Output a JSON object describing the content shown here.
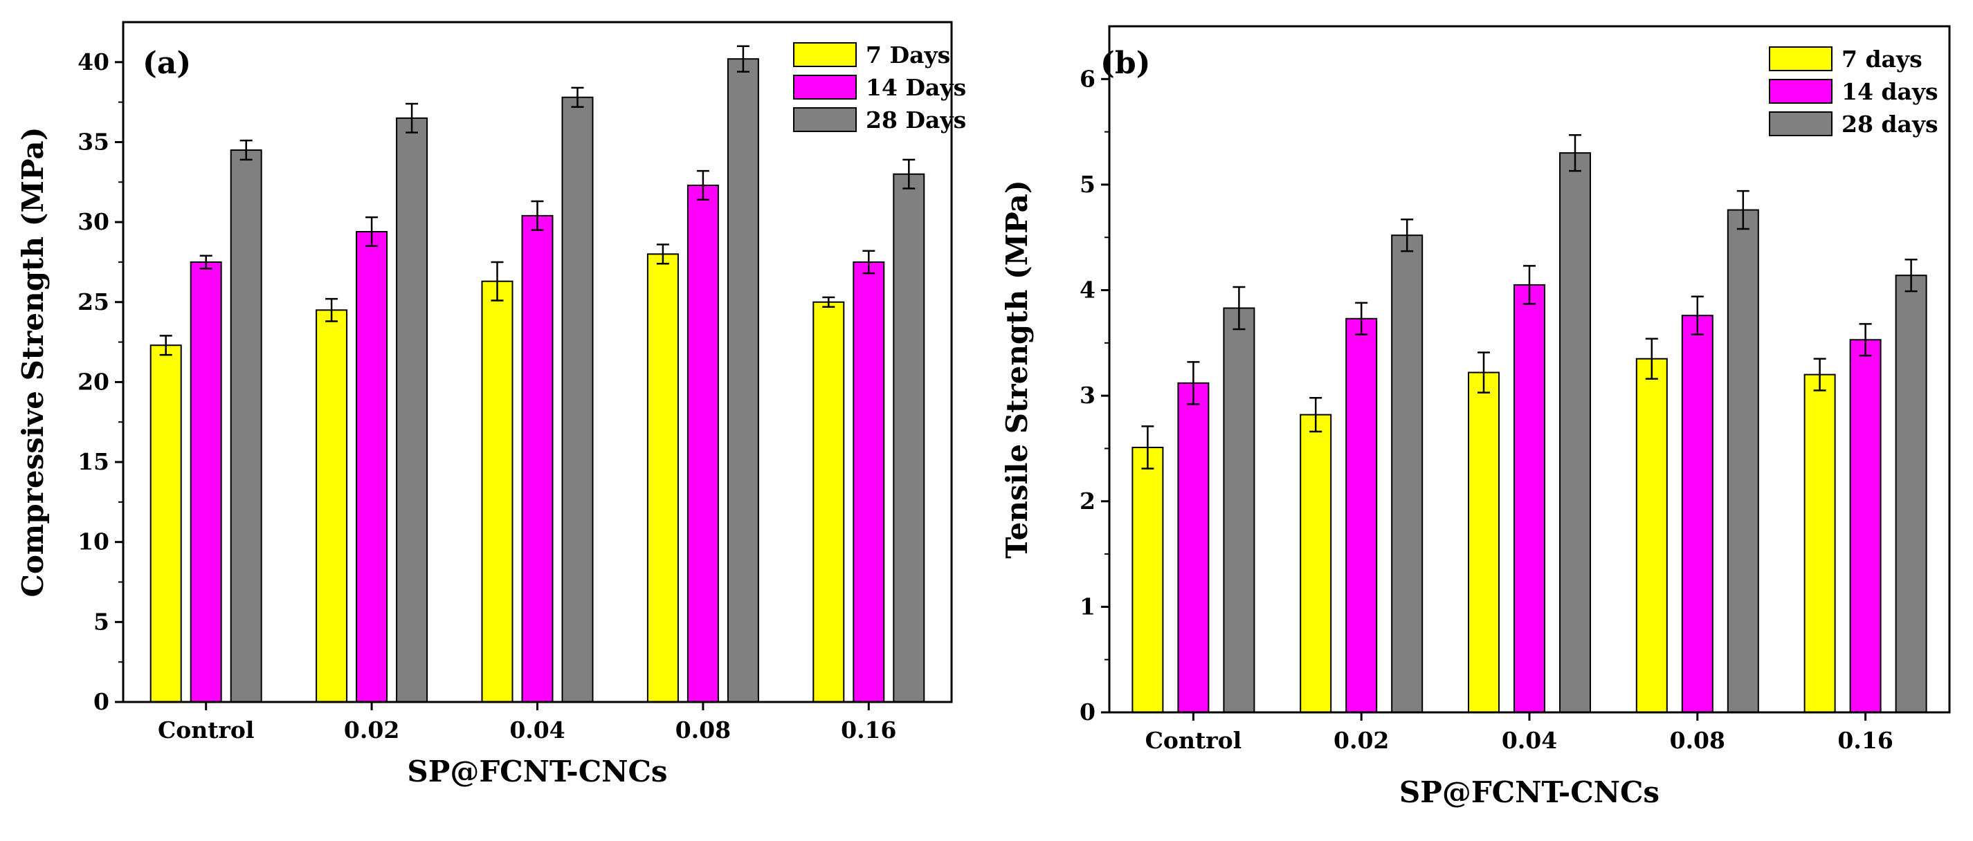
{
  "chart_data": [
    {
      "type": "bar",
      "panel_label": "(a)",
      "categories": [
        "Control",
        "0.02",
        "0.04",
        "0.08",
        "0.16"
      ],
      "series": [
        {
          "name": "7 Days",
          "values": [
            22.3,
            24.5,
            26.3,
            28.0,
            25.0
          ],
          "errors": [
            0.6,
            0.7,
            1.2,
            0.6,
            0.3
          ]
        },
        {
          "name": "14 Days",
          "values": [
            27.5,
            29.4,
            30.4,
            32.3,
            27.5
          ],
          "errors": [
            0.4,
            0.9,
            0.9,
            0.9,
            0.7
          ]
        },
        {
          "name": "28 Days",
          "values": [
            34.5,
            36.5,
            37.8,
            40.2,
            33.0
          ],
          "errors": [
            0.6,
            0.9,
            0.6,
            0.8,
            0.9
          ]
        }
      ],
      "title": "",
      "xlabel": "SP@FCNT-CNCs",
      "ylabel": "Compressive Strength (MPa)",
      "ylim": [
        0,
        42.5
      ],
      "yticks": [
        0,
        5,
        10,
        15,
        20,
        25,
        30,
        35,
        40
      ],
      "grid": false,
      "legend_position": "top-right"
    },
    {
      "type": "bar",
      "panel_label": "(b)",
      "categories": [
        "Control",
        "0.02",
        "0.04",
        "0.08",
        "0.16"
      ],
      "series": [
        {
          "name": "7 days",
          "values": [
            2.51,
            2.82,
            3.22,
            3.35,
            3.2
          ],
          "errors": [
            0.2,
            0.16,
            0.19,
            0.19,
            0.15
          ]
        },
        {
          "name": "14 days",
          "values": [
            3.12,
            3.73,
            4.05,
            3.76,
            3.53
          ],
          "errors": [
            0.2,
            0.15,
            0.18,
            0.18,
            0.15
          ]
        },
        {
          "name": "28 days",
          "values": [
            3.83,
            4.52,
            5.3,
            4.76,
            4.14
          ],
          "errors": [
            0.2,
            0.15,
            0.17,
            0.18,
            0.15
          ]
        }
      ],
      "title": "",
      "xlabel": "SP@FCNT-CNCs",
      "ylabel": "Tensile Strength (MPa)",
      "ylim": [
        0,
        6.5
      ],
      "yticks": [
        0,
        1,
        2,
        3,
        4,
        5,
        6
      ],
      "grid": false,
      "legend_position": "top-right"
    }
  ],
  "colors": {
    "series": [
      "#ffff00",
      "#ff00ff",
      "#808080"
    ],
    "bar_stroke": "#000000",
    "axis": "#000000"
  }
}
